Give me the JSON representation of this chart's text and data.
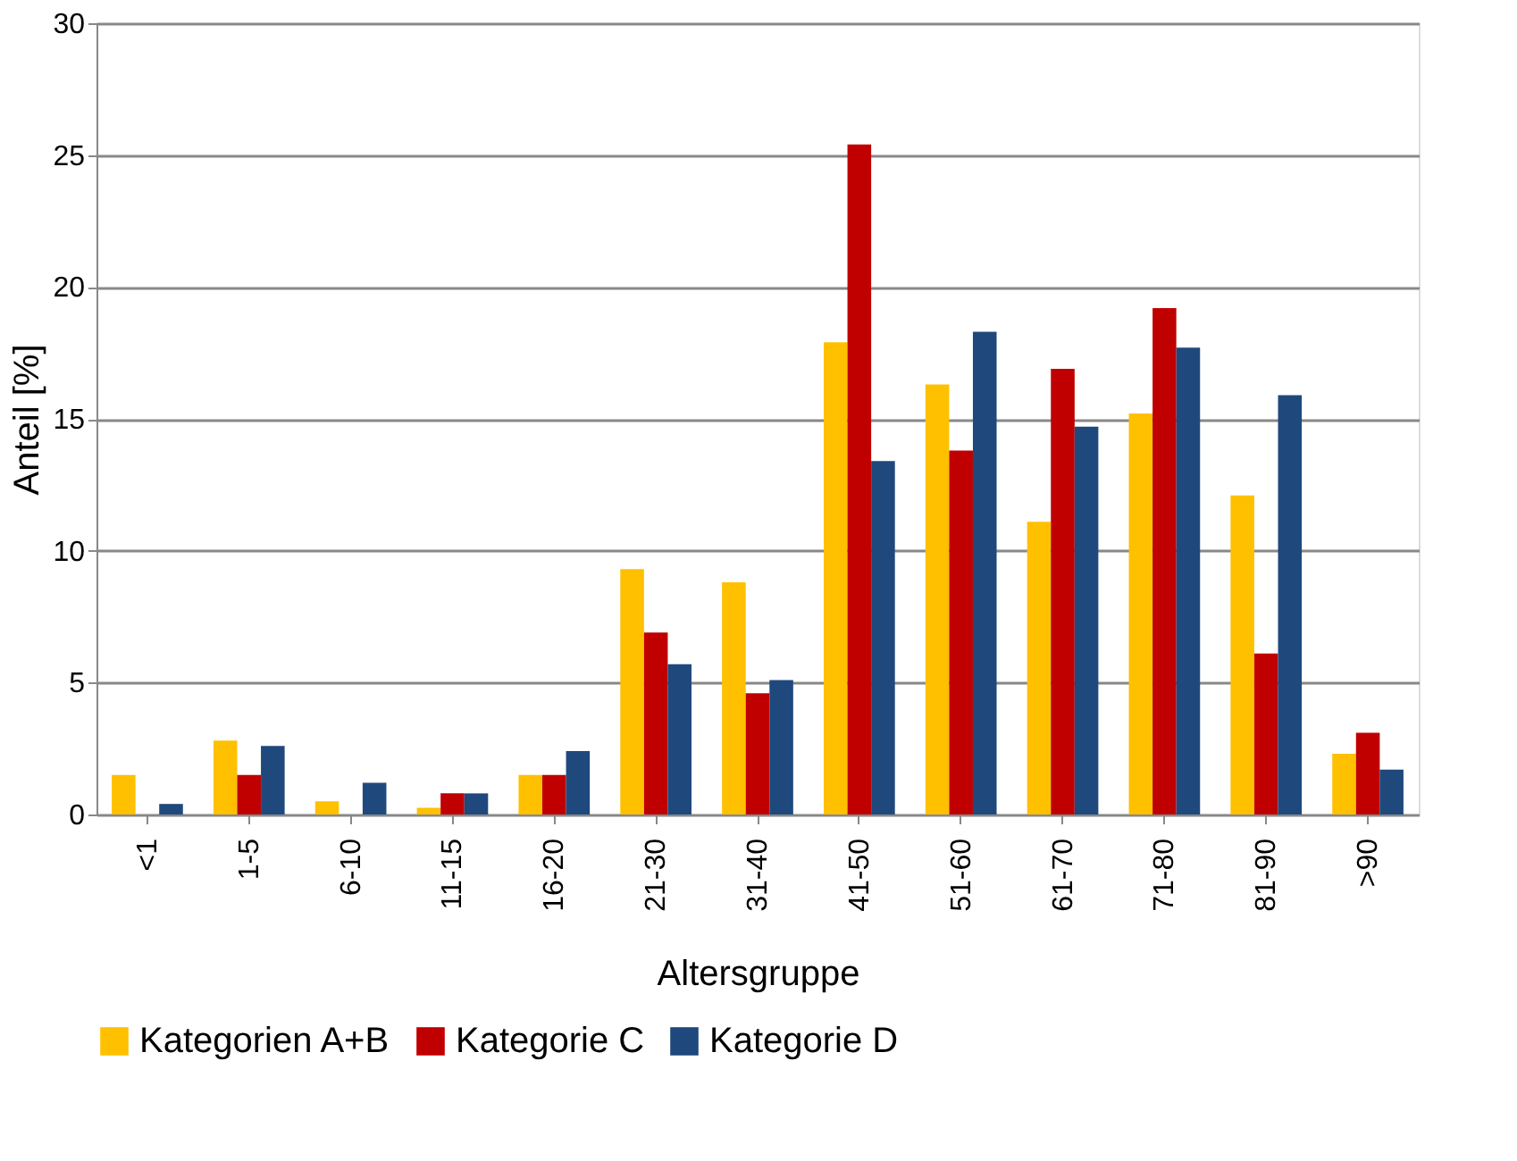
{
  "chart_data": {
    "type": "bar",
    "xlabel": "Altersgruppe",
    "ylabel": "Anteil [%]",
    "categories": [
      "<1",
      "1-5",
      "6-10",
      "11-15",
      "16-20",
      "21-30",
      "31-40",
      "41-50",
      "51-60",
      "61-70",
      "71-80",
      "81-90",
      ">90"
    ],
    "series": [
      {
        "name": "Kategorien A+B",
        "color": "#ffc000",
        "values": [
          1.5,
          2.8,
          0.5,
          0.25,
          1.5,
          9.3,
          8.8,
          17.9,
          16.3,
          11.1,
          15.2,
          12.1,
          2.3
        ]
      },
      {
        "name": "Kategorie C",
        "color": "#c00000",
        "values": [
          0,
          1.5,
          0,
          0.8,
          1.5,
          6.9,
          4.6,
          25.4,
          13.8,
          16.9,
          19.2,
          6.1,
          3.1
        ]
      },
      {
        "name": "Kategorie D",
        "color": "#1f497d",
        "values": [
          0.4,
          2.6,
          1.2,
          0.8,
          2.4,
          5.7,
          5.1,
          13.4,
          18.3,
          14.7,
          17.7,
          15.9,
          1.7
        ]
      }
    ],
    "ylim": [
      0,
      30
    ],
    "yticks": [
      0,
      5,
      10,
      15,
      20,
      25,
      30
    ],
    "grid": "y",
    "legend": "bottom"
  }
}
